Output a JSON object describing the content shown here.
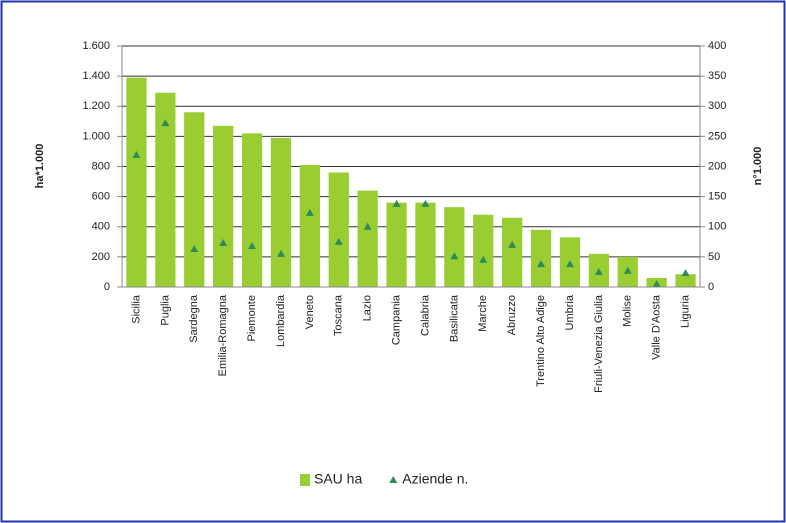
{
  "chart_data": {
    "type": "bar",
    "categories": [
      "Sicilia",
      "Puglia",
      "Sardegna",
      "Emilia-Romagna",
      "Piemonte",
      "Lombardia",
      "Veneto",
      "Toscana",
      "Lazio",
      "Campania",
      "Calabria",
      "Basilicata",
      "Marche",
      "Abruzzo",
      "Trentino Alto Adige",
      "Umbria",
      "Friuli-Venezia Giulia",
      "Molise",
      "Valle D'Aosta",
      "Liguria"
    ],
    "series": [
      {
        "name": "SAU ha",
        "type": "bar",
        "color": "#9acd32",
        "values": [
          1390,
          1290,
          1160,
          1070,
          1020,
          990,
          810,
          760,
          640,
          560,
          560,
          530,
          480,
          460,
          380,
          330,
          220,
          200,
          60,
          85
        ]
      },
      {
        "name": "Aziende n.",
        "type": "scatter",
        "axis": "y2",
        "color": "#2e8b57",
        "values": [
          219,
          272,
          63,
          73,
          68,
          55,
          123,
          75,
          100,
          138,
          138,
          51,
          45,
          70,
          38,
          38,
          25,
          27,
          5,
          23
        ]
      }
    ],
    "ylabel": "ha*1.000",
    "y2label": "n°1.000",
    "ylim": [
      0,
      1600
    ],
    "yticks": [
      0,
      200,
      400,
      600,
      800,
      {
        "value": 1000,
        "label": "1.000"
      },
      {
        "value": 1200,
        "label": "1.200"
      },
      {
        "value": 1400,
        "label": "1.400"
      },
      {
        "value": 1600,
        "label": "1.600"
      }
    ],
    "y2lim": [
      0,
      400
    ],
    "y2ticks": [
      0,
      50,
      100,
      150,
      200,
      250,
      300,
      350,
      400
    ],
    "grid": true,
    "legend": "bottom"
  }
}
